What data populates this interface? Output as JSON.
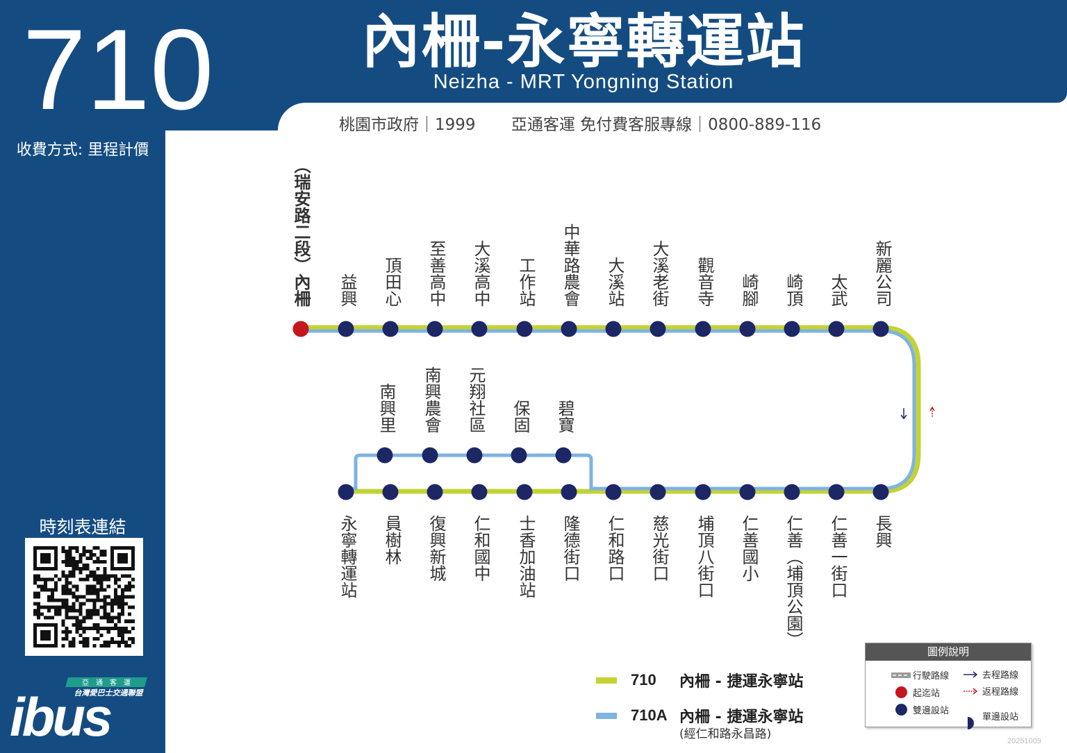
{
  "route": {
    "number": "710",
    "title_zh": "內柵-永寧轉運站",
    "title_en": "Neizha - MRT Yongning Station",
    "fare": "收費方式: 里程計價"
  },
  "contacts": [
    "桃園市政府｜1999",
    "亞通客運 免付費客服專線｜0800-889-116"
  ],
  "sidebar": {
    "timetable_label": "時刻表連結",
    "logo_text": "ibus",
    "logo_top": "亞　通　客　運",
    "logo_sub": "台灣愛巴士交通聯盟"
  },
  "colors": {
    "brand": "#144c82",
    "route_710": "#c3d336",
    "route_710A": "#7fb3e0",
    "stop": "#1d2766",
    "terminus": "#c5161d"
  },
  "stops_top": [
    "（瑞安路二段）內柵",
    "益興",
    "頂田心",
    "至善高中",
    "大溪高中",
    "工作站",
    "中華路農會",
    "大溪站",
    "大溪老街",
    "觀音寺",
    "崎腳",
    "崎頂",
    "太武",
    "新麗公司"
  ],
  "stops_bottom": [
    "永寧轉運站",
    "員樹林",
    "復興新城",
    "仁和國中",
    "士香加油站",
    "隆德街口",
    "仁和路口",
    "慈光街口",
    "埔頂八街口",
    "仁善國小",
    "仁善（埔頂公園）",
    "仁善一街口",
    "長興"
  ],
  "stops_branch": [
    "南興里",
    "南興農會",
    "元翔社區",
    "保固",
    "碧寶"
  ],
  "route_legend": [
    {
      "name": "710",
      "desc": "內柵 - 捷運永寧站",
      "color": "#c3d336"
    },
    {
      "name": "710A",
      "desc": "內柵 - 捷運永寧站",
      "note": "(經仁和路永昌路)",
      "color": "#7fb3e0"
    }
  ],
  "legend": {
    "title": "圖例說明",
    "items": {
      "route_line": "行駛路線",
      "outbound": "去程路線",
      "terminus": "起迄站",
      "return": "返程路線",
      "both_sides": "雙邊設站",
      "one_side": "單邊設站"
    }
  },
  "date": "20251009"
}
